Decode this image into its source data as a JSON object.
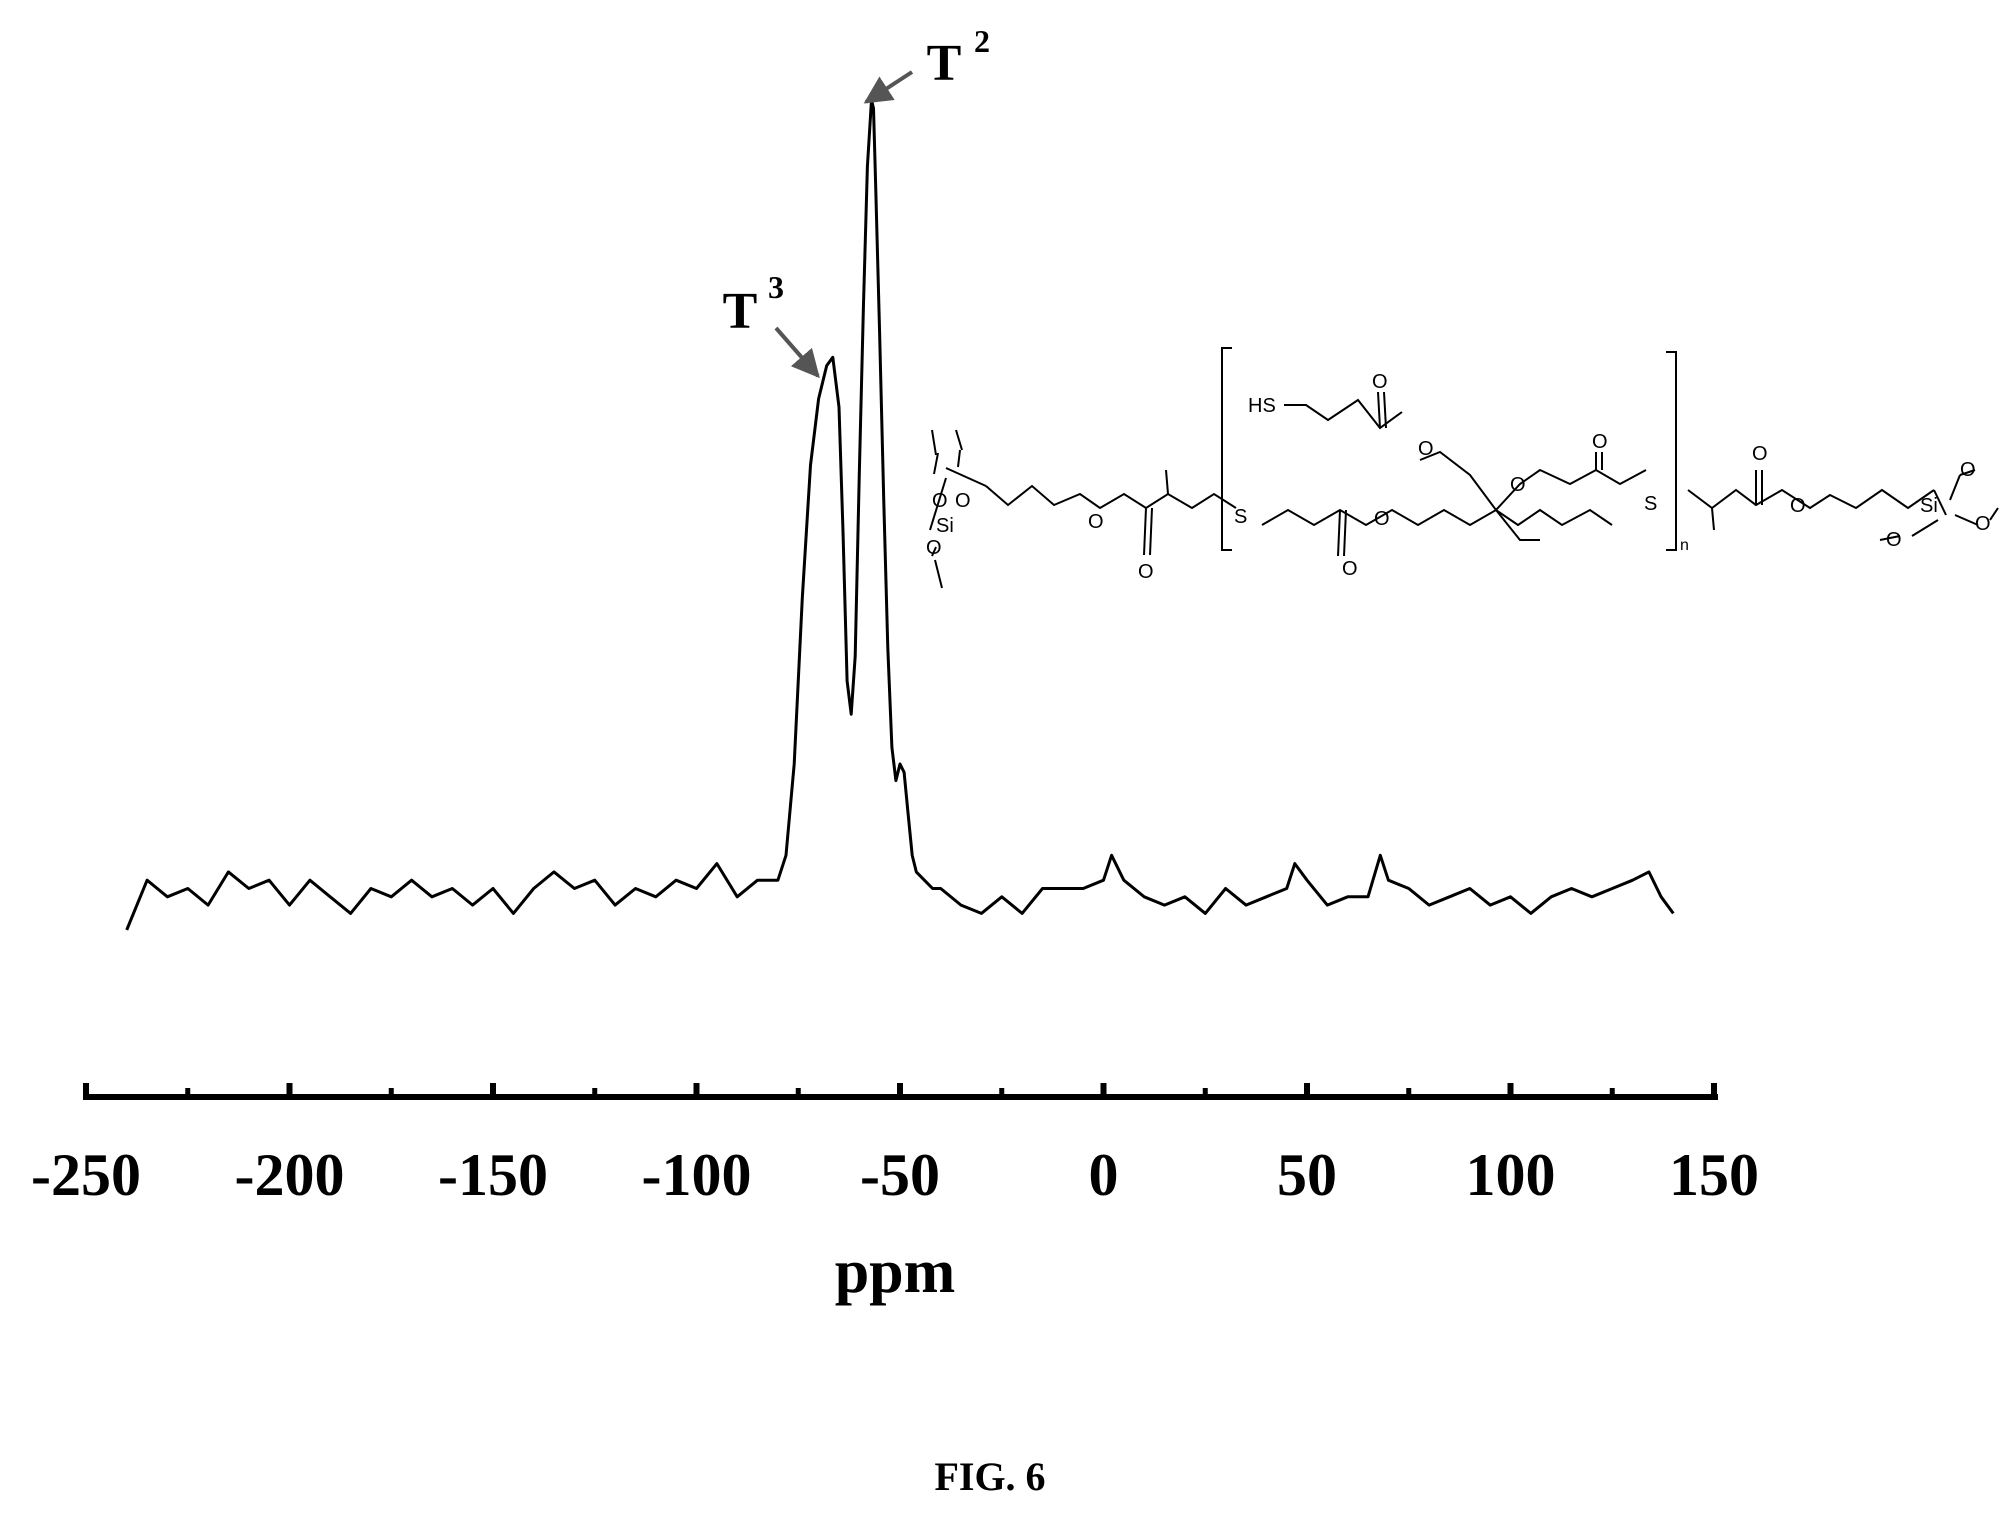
{
  "figure_caption": "FIG. 6",
  "chart_data": {
    "type": "line",
    "xlabel": "ppm",
    "ylabel": "",
    "xlim": [
      -250,
      150
    ],
    "xticks": [
      -250,
      -200,
      -150,
      -100,
      -50,
      0,
      50,
      100,
      150
    ],
    "x_minor_step": 25,
    "ylim": [
      0,
      1
    ],
    "grid": false,
    "legend": "none",
    "line_color": "#000000",
    "series": [
      {
        "x": [
          -240,
          -235,
          -230,
          -225,
          -220,
          -215,
          -210,
          -205,
          -200,
          -195,
          -190,
          -185,
          -180,
          -175,
          -170,
          -165,
          -160,
          -155,
          -150,
          -145,
          -140,
          -135,
          -130,
          -125,
          -120,
          -115,
          -110,
          -105,
          -100,
          -95,
          -90,
          -85,
          -80,
          -78,
          -76,
          -74,
          -72,
          -70,
          -68,
          -66.5,
          -65,
          -64,
          -63,
          -62,
          -61,
          -60,
          -59,
          -58,
          -57,
          -56.5,
          -56,
          -55,
          -54,
          -53,
          -52,
          -51,
          -50,
          -49,
          -48,
          -47,
          -46,
          -44,
          -42,
          -40,
          -35,
          -30,
          -25,
          -20,
          -15,
          -10,
          -5,
          0,
          2,
          5,
          10,
          15,
          20,
          25,
          30,
          35,
          40,
          45,
          47,
          50,
          55,
          60,
          65,
          68,
          70,
          75,
          80,
          85,
          90,
          95,
          100,
          105,
          110,
          115,
          120,
          125,
          130,
          134,
          137,
          140
        ],
        "y": [
          0.0,
          0.06,
          0.04,
          0.05,
          0.03,
          0.07,
          0.05,
          0.06,
          0.03,
          0.06,
          0.04,
          0.02,
          0.05,
          0.04,
          0.06,
          0.04,
          0.05,
          0.03,
          0.05,
          0.02,
          0.05,
          0.07,
          0.05,
          0.06,
          0.03,
          0.05,
          0.04,
          0.06,
          0.05,
          0.08,
          0.04,
          0.06,
          0.06,
          0.09,
          0.2,
          0.4,
          0.56,
          0.64,
          0.68,
          0.69,
          0.63,
          0.48,
          0.3,
          0.26,
          0.33,
          0.55,
          0.75,
          0.92,
          1.0,
          0.99,
          0.9,
          0.72,
          0.52,
          0.34,
          0.22,
          0.18,
          0.2,
          0.19,
          0.14,
          0.09,
          0.07,
          0.06,
          0.05,
          0.05,
          0.03,
          0.02,
          0.04,
          0.02,
          0.05,
          0.05,
          0.05,
          0.06,
          0.09,
          0.06,
          0.04,
          0.03,
          0.04,
          0.02,
          0.05,
          0.03,
          0.04,
          0.05,
          0.08,
          0.06,
          0.03,
          0.04,
          0.04,
          0.09,
          0.06,
          0.05,
          0.03,
          0.04,
          0.05,
          0.03,
          0.04,
          0.02,
          0.04,
          0.05,
          0.04,
          0.05,
          0.06,
          0.07,
          0.04,
          0.02
        ]
      }
    ],
    "annotations": [
      {
        "label": "T",
        "sup": "2",
        "x": -57,
        "y": 1.0
      },
      {
        "label": "T",
        "sup": "3",
        "x": -66.5,
        "y": 0.69
      }
    ]
  },
  "structure": {
    "si_label": "Si",
    "o_label": "O",
    "s_label": "S",
    "hs_label": "HS",
    "n_label": "n"
  }
}
